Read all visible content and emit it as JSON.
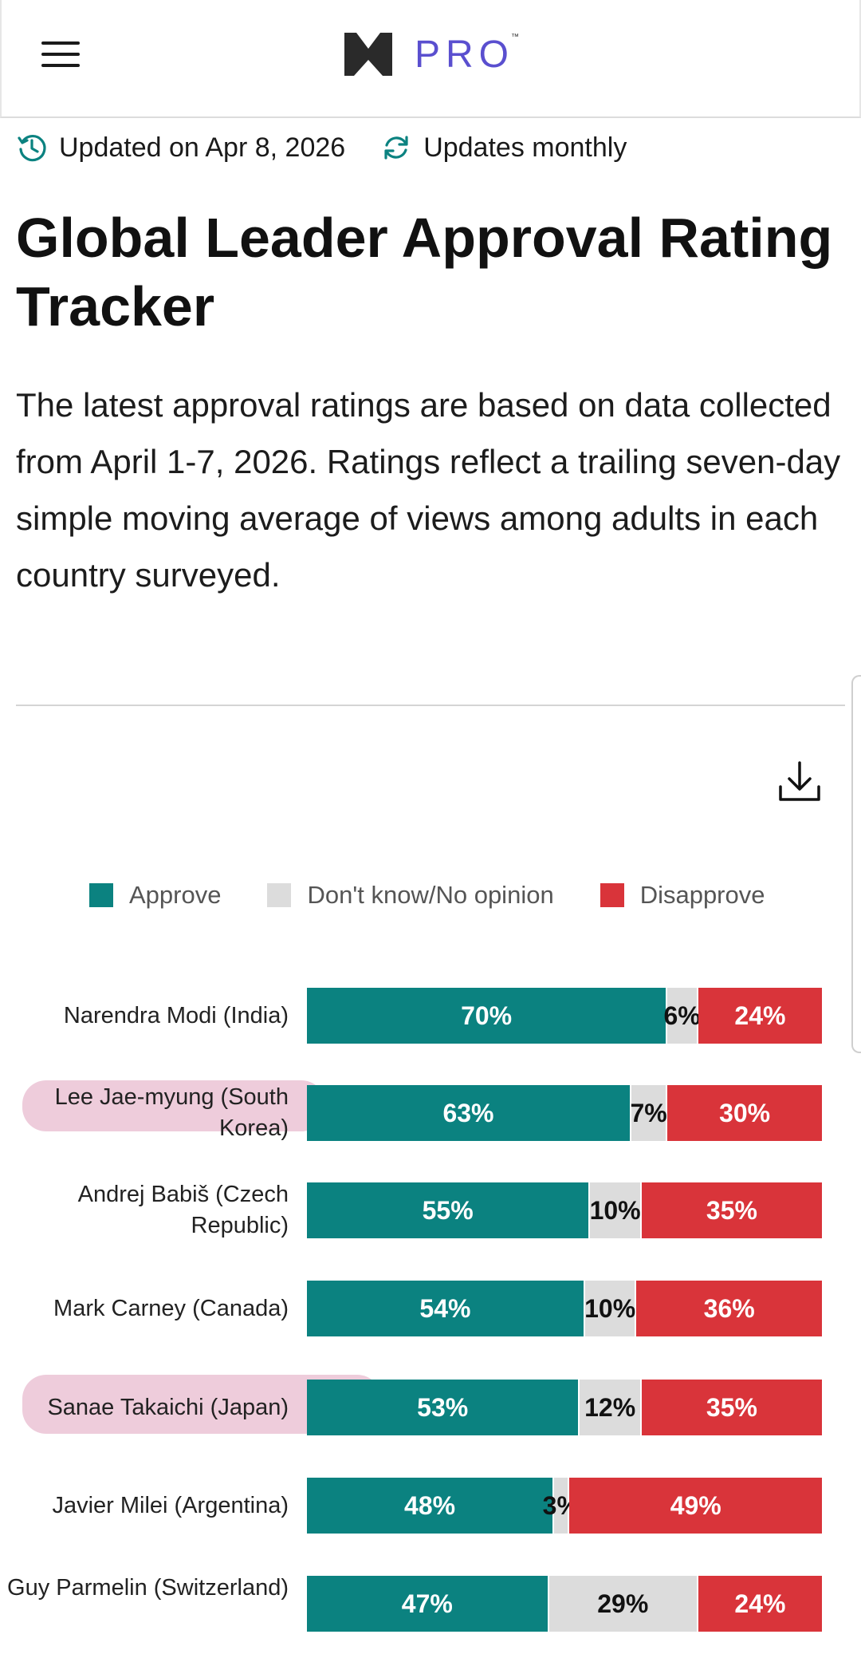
{
  "header": {
    "menu_icon": "hamburger-menu-icon",
    "logo_icon": "m-logo-icon",
    "logo_text": "PRO",
    "logo_tm": "™"
  },
  "meta": {
    "updated": "Updated on Apr 8, 2026",
    "frequency": "Updates monthly"
  },
  "page": {
    "title": "Global Leader Approval Rating Tracker",
    "description": "The latest approval ratings are based on data collected from April 1-7, 2026. Ratings reflect a trailing seven-day simple moving average of views among adults in each country surveyed."
  },
  "colors": {
    "approve": "#0b8280",
    "neutral": "#dcdcdc",
    "disapprove": "#d9343a",
    "highlight": "#e4a5c2"
  },
  "chart_data": {
    "type": "bar",
    "stacked": true,
    "orientation": "horizontal",
    "legend": [
      "Approve",
      "Don't know/No opinion",
      "Disapprove"
    ],
    "legend_position": "top",
    "categories": [
      "Narendra Modi (India)",
      "Lee Jae-myung (South Korea)",
      "Andrej Babiš (Czech Republic)",
      "Mark Carney (Canada)",
      "Sanae Takaichi (Japan)",
      "Javier Milei (Argentina)",
      "Guy Parmelin (Switzerland)"
    ],
    "series": [
      {
        "name": "Approve",
        "values": [
          70,
          63,
          55,
          54,
          53,
          48,
          47
        ]
      },
      {
        "name": "Don't know/No opinion",
        "values": [
          6,
          7,
          10,
          10,
          12,
          3,
          29
        ]
      },
      {
        "name": "Disapprove",
        "values": [
          24,
          30,
          35,
          36,
          35,
          49,
          24
        ]
      }
    ],
    "value_suffix": "%",
    "highlighted_rows": [
      "Lee Jae-myung (South Korea)",
      "Sanae Takaichi (Japan)"
    ]
  }
}
